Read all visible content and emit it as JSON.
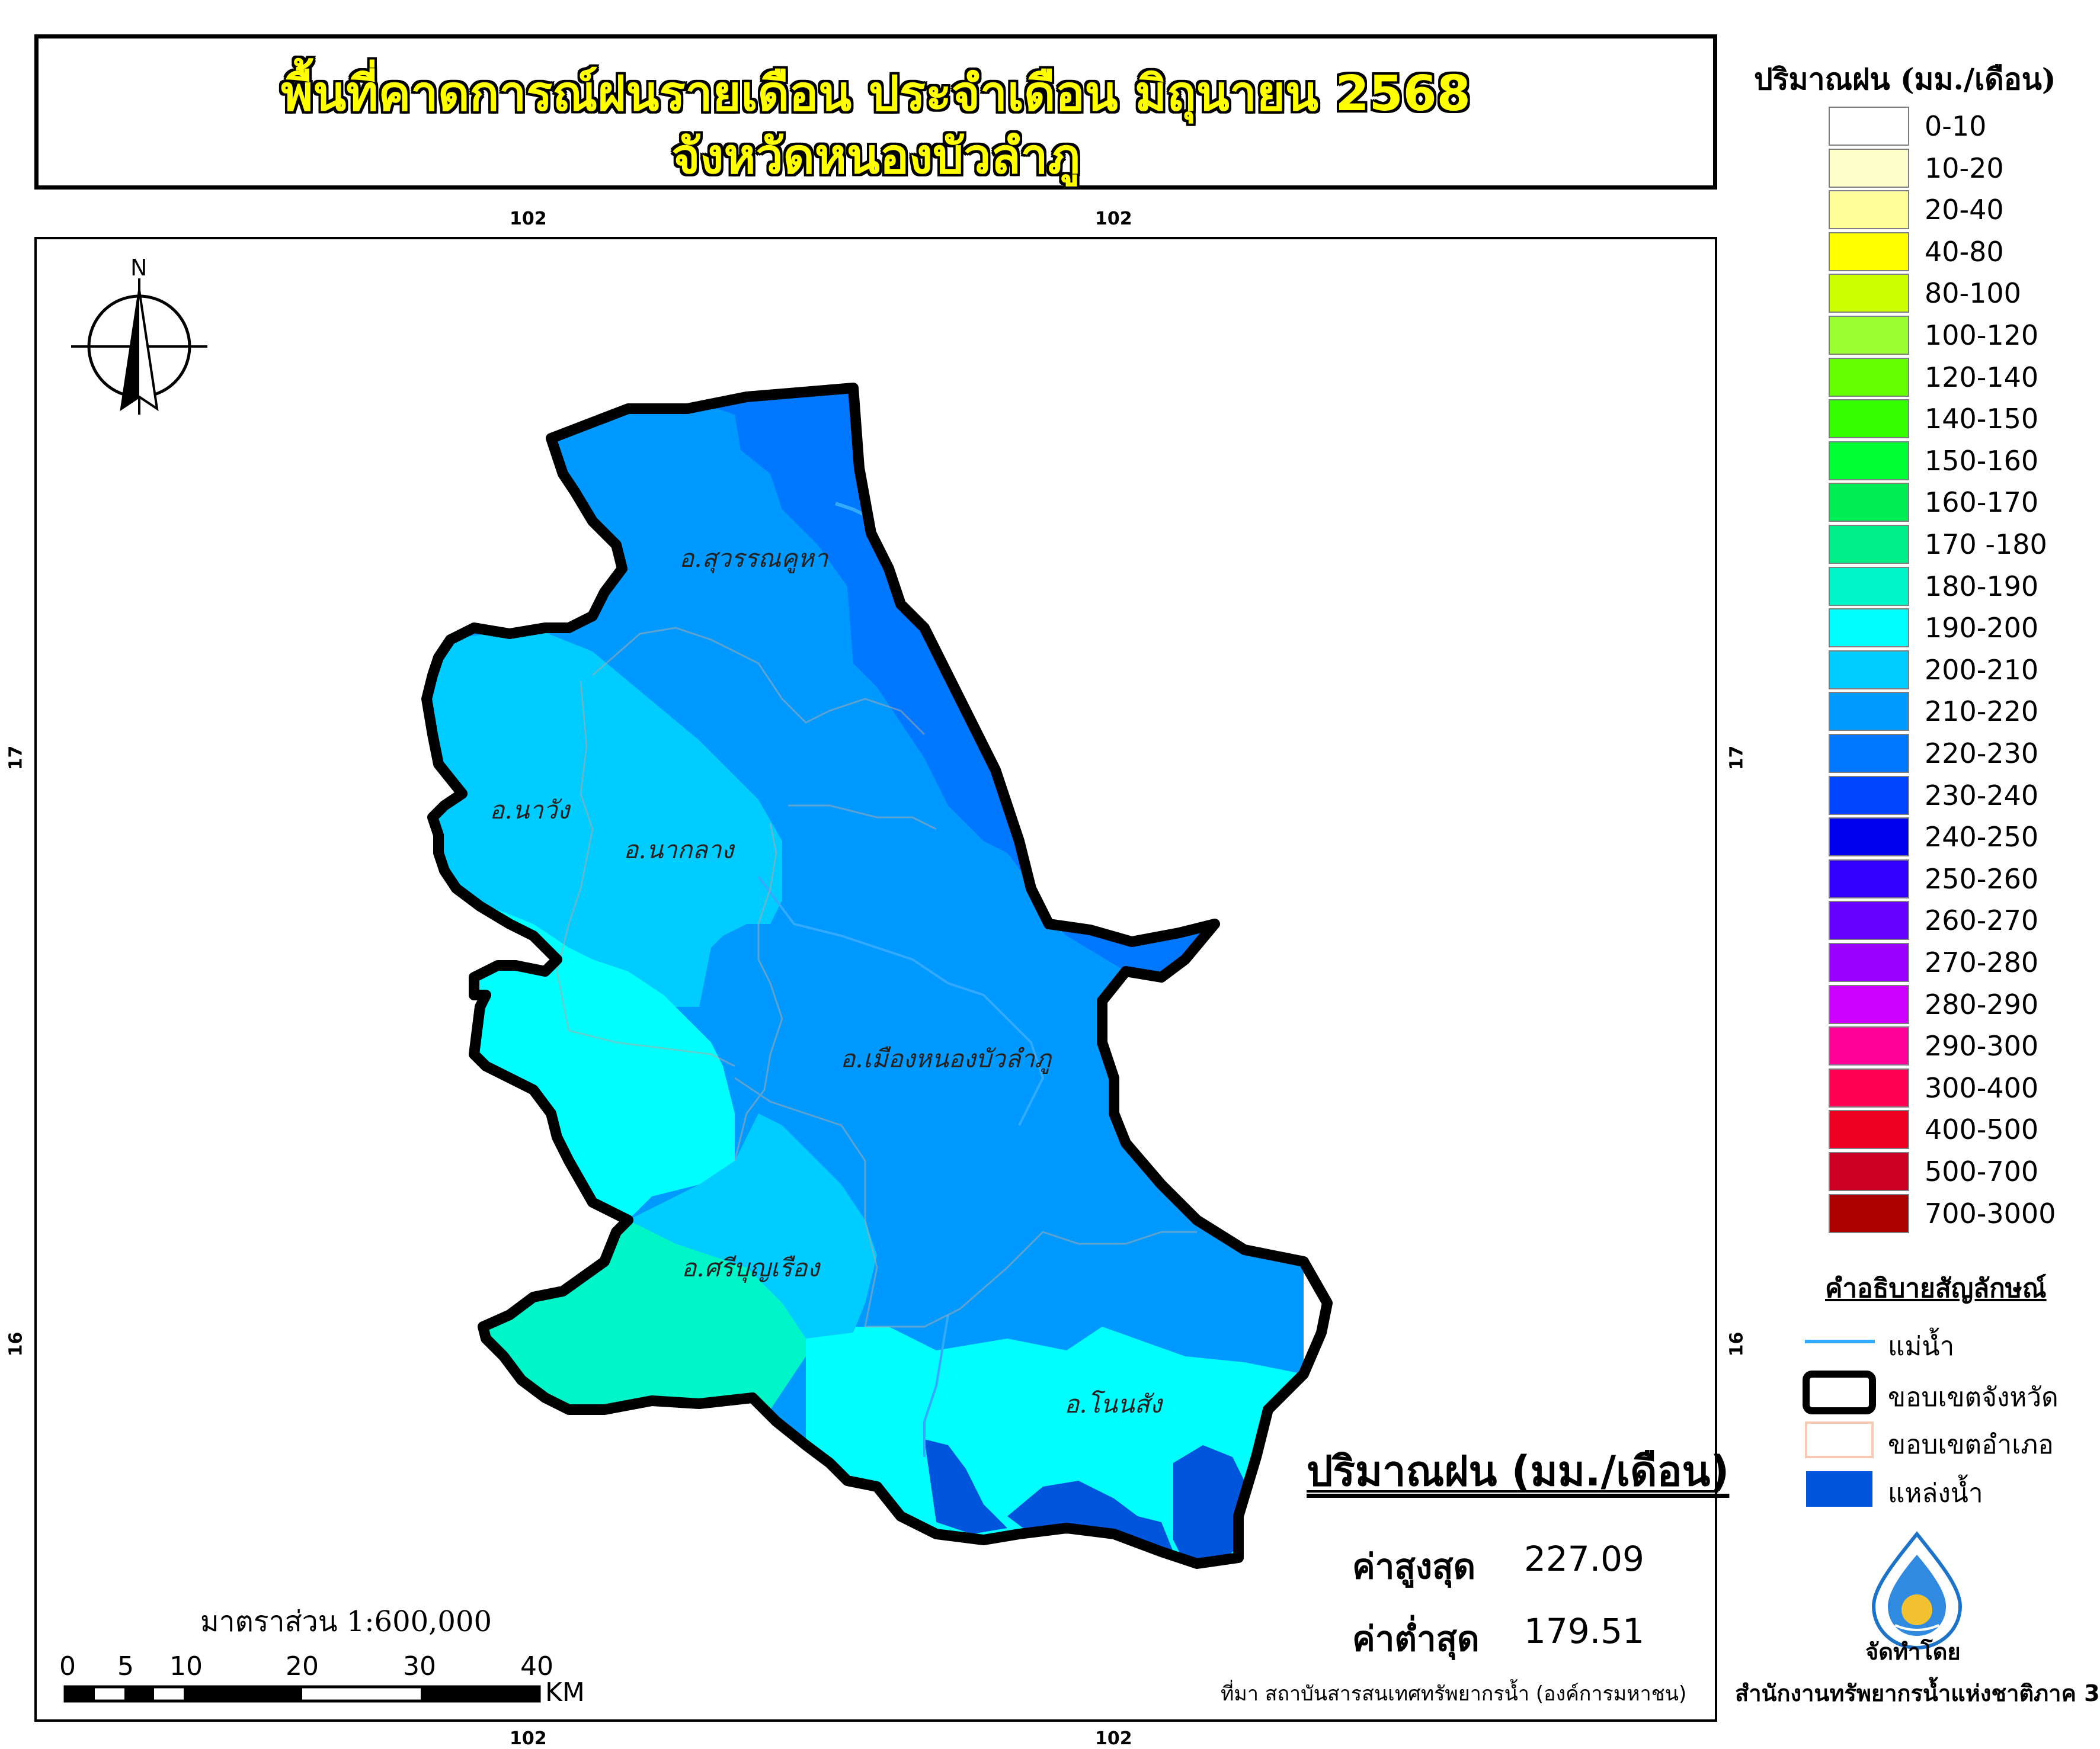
{
  "title": {
    "line1": "พื้นที่คาดการณ์ฝนรายเดือน ประจำเดือน มิถุนายน 2568",
    "line2": "จังหวัดหนองบัวลำภู"
  },
  "coordinates": {
    "top_left": "102",
    "top_right": "102",
    "bottom_left": "102",
    "bottom_right": "102",
    "left_upper": "17",
    "left_lower": "16",
    "right_upper": "17",
    "right_lower": "16"
  },
  "legend": {
    "title": "ปริมาณฝน (มม./เดือน)",
    "items": [
      {
        "label": "0-10",
        "color": "#ffffff"
      },
      {
        "label": "10-20",
        "color": "#ffffcc"
      },
      {
        "label": "20-40",
        "color": "#ffff99"
      },
      {
        "label": "40-80",
        "color": "#ffff00"
      },
      {
        "label": "80-100",
        "color": "#ccff00"
      },
      {
        "label": "100-120",
        "color": "#99ff33"
      },
      {
        "label": "120-140",
        "color": "#66ff00"
      },
      {
        "label": "140-150",
        "color": "#33ff00"
      },
      {
        "label": "150-160",
        "color": "#00ff33"
      },
      {
        "label": "160-170",
        "color": "#00ee55"
      },
      {
        "label": "170 -180",
        "color": "#00ee88"
      },
      {
        "label": "180-190",
        "color": "#00f5c8"
      },
      {
        "label": "190-200",
        "color": "#00ffff"
      },
      {
        "label": "200-210",
        "color": "#00ccff"
      },
      {
        "label": "210-220",
        "color": "#0099ff"
      },
      {
        "label": "220-230",
        "color": "#0077ff"
      },
      {
        "label": "230-240",
        "color": "#0044ff"
      },
      {
        "label": "240-250",
        "color": "#0000ee"
      },
      {
        "label": "250-260",
        "color": "#3300ff"
      },
      {
        "label": "260-270",
        "color": "#6600ff"
      },
      {
        "label": "270-280",
        "color": "#9900ff"
      },
      {
        "label": "280-290",
        "color": "#cc00ff"
      },
      {
        "label": "290-300",
        "color": "#ff0099"
      },
      {
        "label": "300-400",
        "color": "#ff0055"
      },
      {
        "label": "400-500",
        "color": "#ee0022"
      },
      {
        "label": "500-700",
        "color": "#cc0022"
      },
      {
        "label": "700-3000",
        "color": "#aa0000"
      }
    ]
  },
  "symbols": {
    "title": "คำอธิบายสัญลักษณ์",
    "items": [
      {
        "label": "แม่น้ำ",
        "color": "#33aaff"
      },
      {
        "label": "ขอบเขตจังหวัด",
        "color": "#000000"
      },
      {
        "label": "ขอบเขตอำเภอ",
        "color": "#f7c9b5"
      },
      {
        "label": "แหล่งน้ำ",
        "color": "#0055dd"
      }
    ]
  },
  "stats": {
    "heading": "ปริมาณฝน (มม./เดือน)",
    "max_label": "ค่าสูงสุด",
    "max_value": "227.09",
    "min_label": "ค่าต่ำสุด",
    "min_value": "179.51"
  },
  "districts": {
    "suwannakhuha": "อ.สุวรรณคูหา",
    "nawang": "อ.นาวัง",
    "naklang": "อ.นากลาง",
    "mueang": "อ.เมืองหนองบัวลำภู",
    "siboonrueang": "อ.ศรีบุญเรือง",
    "nonsang": "อ.โนนสัง"
  },
  "north_label": "N",
  "scale": {
    "text": "มาตราส่วน  1:600,000",
    "ticks": [
      "0",
      "5",
      "10",
      "20",
      "30",
      "40"
    ],
    "unit": "KM"
  },
  "source": "ที่มา  สถาบันสารสนเทศทรัพยากรน้ำ (องค์การมหาชน)",
  "maker": {
    "label": "จัดทำโดย",
    "org": "สำนักงานทรัพยากรน้ำแห่งชาติภาค 3"
  },
  "colors": {
    "zone_190_200": "#00ffff",
    "zone_200_210": "#00ccff",
    "zone_210_220": "#0099ff",
    "zone_220_230": "#0077ff",
    "zone_180_190": "#00f5c8",
    "water_body": "#0055dd"
  }
}
